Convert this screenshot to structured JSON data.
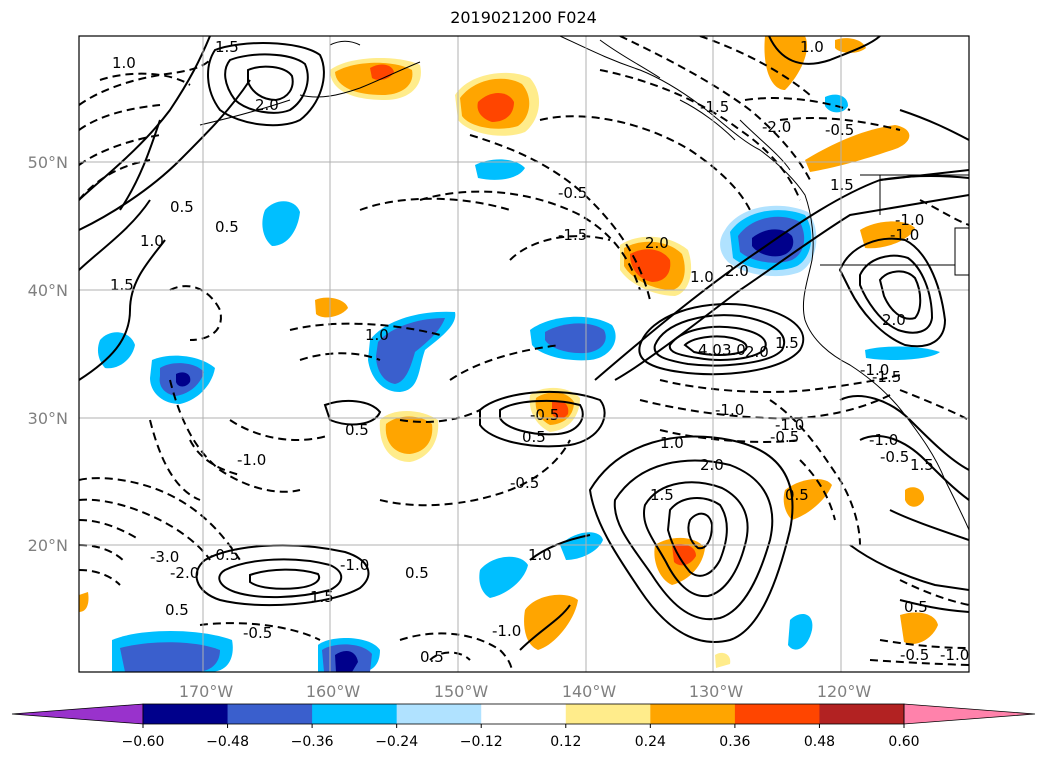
{
  "title": "2019021200 F024",
  "map": {
    "lat_ticks": [
      "50°N",
      "40°N",
      "30°N",
      "20°N"
    ],
    "lon_ticks": [
      "170°W",
      "160°W",
      "150°W",
      "140°W",
      "130°W",
      "120°W"
    ],
    "grid": true,
    "contour_labels": [
      "1.5",
      "2.0",
      "1.0",
      "0.5",
      "0.5",
      "1.0",
      "1.5",
      "0.5",
      "-1.5",
      "-0.5",
      "-1.5",
      "-2.0",
      "2.0",
      "1.0",
      "-1.0",
      "-1.0",
      "4.0",
      "3.0",
      "2.0",
      "1.5",
      "-1.0",
      "-1.0",
      "-0.5",
      "1.0",
      "2.0",
      "1.5",
      "0.5",
      "-0.5",
      "0.5",
      "-0.5",
      "-1.0",
      "0.5",
      "-0.5",
      "1.0",
      "-1.0",
      "1.5",
      "-1.0",
      "0.5",
      "-2.0",
      "-3.0",
      "0.5",
      "-0.5",
      "1.5",
      "2.0",
      "-1.5",
      "-1.0",
      "1.0",
      "-0.5",
      "1.5",
      "-0.5",
      "0.5",
      "-1.0",
      "2.0",
      "1.0",
      "-1.0",
      "-0.5"
    ]
  },
  "colorbar": {
    "levels": [
      "−0.60",
      "−0.48",
      "−0.36",
      "−0.24",
      "−0.12",
      "0.12",
      "0.24",
      "0.36",
      "0.48",
      "0.60"
    ],
    "colors": [
      "#9932cc",
      "#00008b",
      "#3a5fcd",
      "#00bfff",
      "#b0e2ff",
      "#ffffff",
      "#ffec8b",
      "#ffa500",
      "#ff4500",
      "#b22222",
      "#ff82ab"
    ]
  }
}
